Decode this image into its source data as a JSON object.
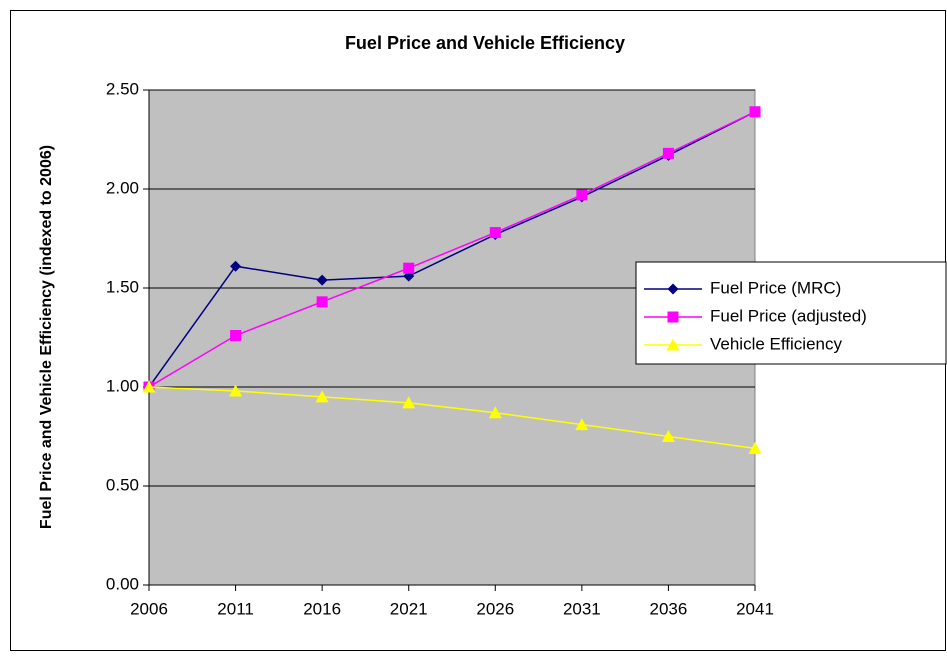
{
  "chart_data": {
    "type": "line",
    "title": "Fuel Price and Vehicle Efficiency",
    "y_label": "Fuel Price and Vehicle Efficiency (indexed to 2006)",
    "categories": [
      "2006",
      "2011",
      "2016",
      "2021",
      "2026",
      "2031",
      "2036",
      "2041"
    ],
    "series": [
      {
        "name": "Fuel Price (MRC)",
        "color": "#000080",
        "marker": "diamond",
        "values": [
          1.0,
          1.61,
          1.54,
          1.56,
          1.77,
          1.96,
          2.17,
          2.39
        ]
      },
      {
        "name": "Fuel Price (adjusted)",
        "color": "#ff00ff",
        "marker": "square",
        "values": [
          1.0,
          1.26,
          1.43,
          1.6,
          1.78,
          1.97,
          2.18,
          2.39
        ]
      },
      {
        "name": "Vehicle Efficiency",
        "color": "#ffff00",
        "marker": "triangle",
        "values": [
          1.0,
          0.98,
          0.95,
          0.92,
          0.87,
          0.81,
          0.75,
          0.69
        ]
      }
    ],
    "ylim": [
      0,
      2.5
    ],
    "yticks": [
      {
        "value": 0,
        "label": "0.00"
      },
      {
        "value": 0.5,
        "label": "0.50"
      },
      {
        "value": 1,
        "label": "1.00"
      },
      {
        "value": 1.5,
        "label": "1.50"
      },
      {
        "value": 2,
        "label": "2.00"
      },
      {
        "value": 2.5,
        "label": "2.50"
      }
    ],
    "grid": true,
    "legend": "right"
  }
}
